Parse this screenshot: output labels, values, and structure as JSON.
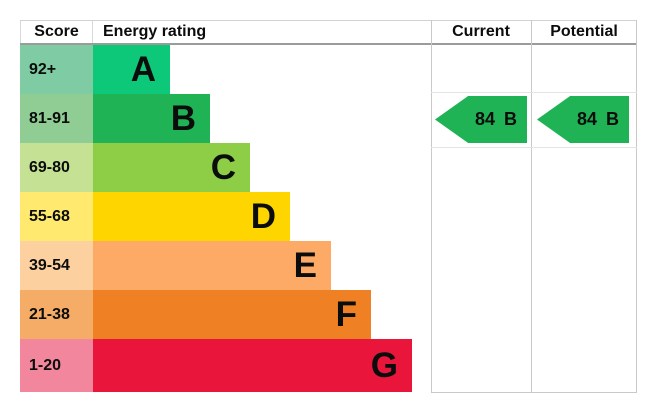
{
  "header": {
    "score": "Score",
    "energy_rating": "Energy rating",
    "current": "Current",
    "potential": "Potential"
  },
  "bands": [
    {
      "score": "92+",
      "letter": "A",
      "color": "#0dc878",
      "tint": "#7fcba3"
    },
    {
      "score": "81-91",
      "letter": "B",
      "color": "#1fb356",
      "tint": "#90cd95"
    },
    {
      "score": "69-80",
      "letter": "C",
      "color": "#8dce46",
      "tint": "#c5e194"
    },
    {
      "score": "55-68",
      "letter": "D",
      "color": "#ffd500",
      "tint": "#ffe96e"
    },
    {
      "score": "39-54",
      "letter": "E",
      "color": "#fcaa65",
      "tint": "#fdd0a0"
    },
    {
      "score": "21-38",
      "letter": "F",
      "color": "#ef8023",
      "tint": "#f5ac66"
    },
    {
      "score": "1-20",
      "letter": "G",
      "color": "#e9153b",
      "tint": "#f1869c"
    }
  ],
  "current": {
    "value": "84",
    "rating": "B",
    "color": "#1fb356"
  },
  "potential": {
    "value": "84",
    "rating": "B",
    "color": "#1fb356"
  },
  "chart_data": {
    "type": "bar",
    "title": "Energy rating chart (EPC style)",
    "categories": [
      "A",
      "B",
      "C",
      "D",
      "E",
      "F",
      "G"
    ],
    "score_ranges": [
      "92+",
      "81-91",
      "69-80",
      "55-68",
      "39-54",
      "21-38",
      "1-20"
    ],
    "band_colors": [
      "#0dc878",
      "#1fb356",
      "#8dce46",
      "#ffd500",
      "#fcaa65",
      "#ef8023",
      "#e9153b"
    ],
    "bar_direction": "horizontal, stepped wider from A to G",
    "columns": [
      "Score",
      "Energy rating",
      "Current",
      "Potential"
    ],
    "current": {
      "score": 84,
      "rating": "B"
    },
    "potential": {
      "score": 84,
      "rating": "B"
    },
    "grid": "light gray column separators, arrows aligned with band B row"
  }
}
